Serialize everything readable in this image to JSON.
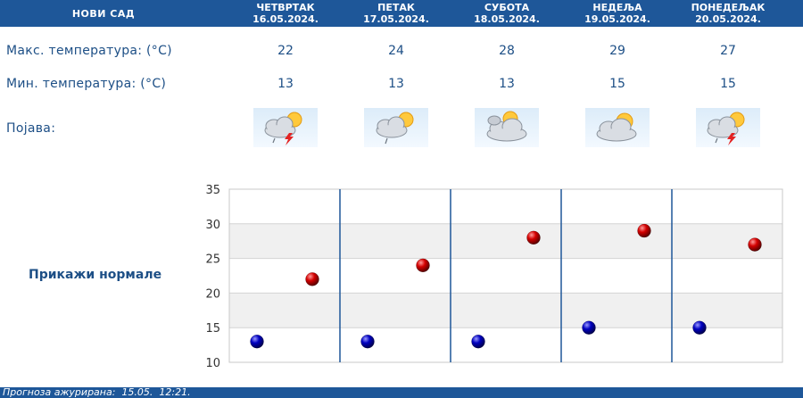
{
  "header": {
    "city": "НОВИ САД",
    "days": [
      {
        "name": "ЧЕТВРТАК",
        "date": "16.05.2024."
      },
      {
        "name": "ПЕТАК",
        "date": "17.05.2024."
      },
      {
        "name": "СУБОТА",
        "date": "18.05.2024."
      },
      {
        "name": "НЕДЕЉА",
        "date": "19.05.2024."
      },
      {
        "name": "ПОНЕДЕЉАК",
        "date": "20.05.2024."
      }
    ]
  },
  "rows": {
    "max_label": "Макс. температура: (°C)",
    "min_label": "Мин. температура: (°C)",
    "phenomenon_label": "Појава:",
    "max_values": [
      "22",
      "24",
      "28",
      "29",
      "27"
    ],
    "min_values": [
      "13",
      "13",
      "13",
      "15",
      "15"
    ],
    "icons": [
      "thunderstorm-icon",
      "rain-shower-icon",
      "partly-cloudy-icon",
      "partly-cloudy-icon",
      "thunderstorm-icon"
    ]
  },
  "normals_button": "Прикажи нормале",
  "footer": {
    "text": "Прогноза ажурирана:  15.05.  12:21."
  },
  "colors": {
    "header_bg": "#1e5799",
    "text": "#1d4f86",
    "max_marker": "#d40000",
    "min_marker": "#0000c0",
    "band": "#f0f0f0"
  },
  "chart_data": {
    "type": "scatter",
    "categories": [
      "ЧЕТВРТАК",
      "ПЕТАК",
      "СУБОТА",
      "НЕДЕЉА",
      "ПОНЕДЕЉАК"
    ],
    "y_ticks": [
      "35",
      "30",
      "25",
      "20",
      "15",
      "10"
    ],
    "ylim": [
      10,
      35
    ],
    "series": [
      {
        "values": [
          22,
          24,
          28,
          29,
          27
        ],
        "color": "#d40000"
      },
      {
        "values": [
          13,
          13,
          13,
          15,
          15
        ],
        "color": "#0000c0"
      }
    ],
    "grid": true,
    "legend": "none"
  }
}
